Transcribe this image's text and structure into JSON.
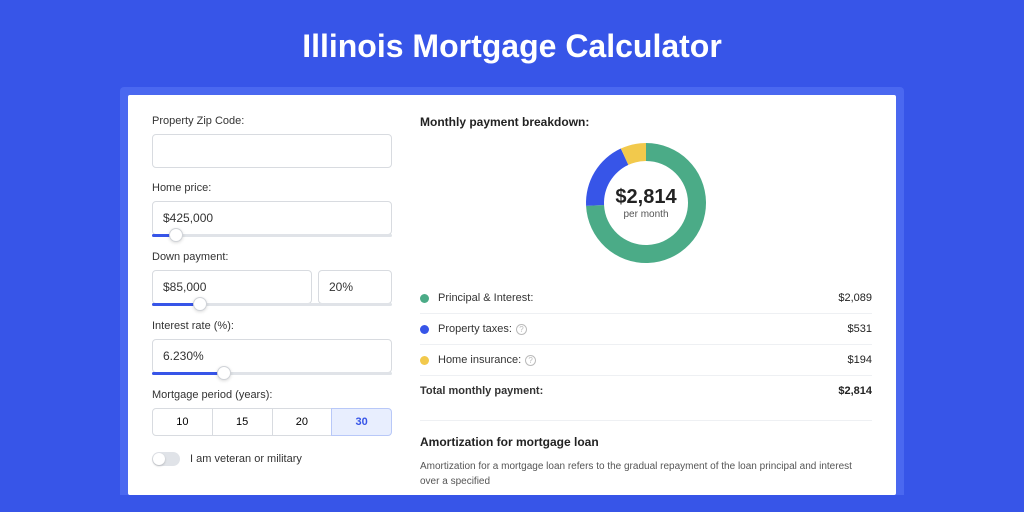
{
  "page": {
    "title": "Illinois Mortgage Calculator",
    "background_color": "#3755e8",
    "card_wrap_color": "#4a68f0"
  },
  "form": {
    "zip": {
      "label": "Property Zip Code:",
      "value": ""
    },
    "home_price": {
      "label": "Home price:",
      "value": "$425,000",
      "slider_pct": 10
    },
    "down_payment": {
      "label": "Down payment:",
      "value": "$85,000",
      "pct_value": "20%",
      "slider_pct": 20
    },
    "interest_rate": {
      "label": "Interest rate (%):",
      "value": "6.230%",
      "slider_pct": 30
    },
    "period": {
      "label": "Mortgage period (years):",
      "options": [
        "10",
        "15",
        "20",
        "30"
      ],
      "selected": "30"
    },
    "veteran": {
      "label": "I am veteran or military",
      "on": false
    }
  },
  "breakdown": {
    "title": "Monthly payment breakdown:",
    "center_amount": "$2,814",
    "center_sub": "per month",
    "donut": {
      "type": "donut",
      "slices": [
        {
          "key": "principal_interest",
          "value": 2089,
          "color": "#4bab87"
        },
        {
          "key": "property_taxes",
          "value": 531,
          "color": "#3755e8"
        },
        {
          "key": "home_insurance",
          "value": 194,
          "color": "#f2c94c"
        }
      ],
      "radius_outer": 60,
      "radius_inner": 42,
      "background_color": "#ffffff"
    },
    "rows": [
      {
        "label": "Principal & Interest:",
        "value": "$2,089",
        "color": "#4bab87",
        "info": false
      },
      {
        "label": "Property taxes:",
        "value": "$531",
        "color": "#3755e8",
        "info": true
      },
      {
        "label": "Home insurance:",
        "value": "$194",
        "color": "#f2c94c",
        "info": true
      }
    ],
    "total": {
      "label": "Total monthly payment:",
      "value": "$2,814"
    }
  },
  "amortization": {
    "title": "Amortization for mortgage loan",
    "text": "Amortization for a mortgage loan refers to the gradual repayment of the loan principal and interest over a specified"
  }
}
